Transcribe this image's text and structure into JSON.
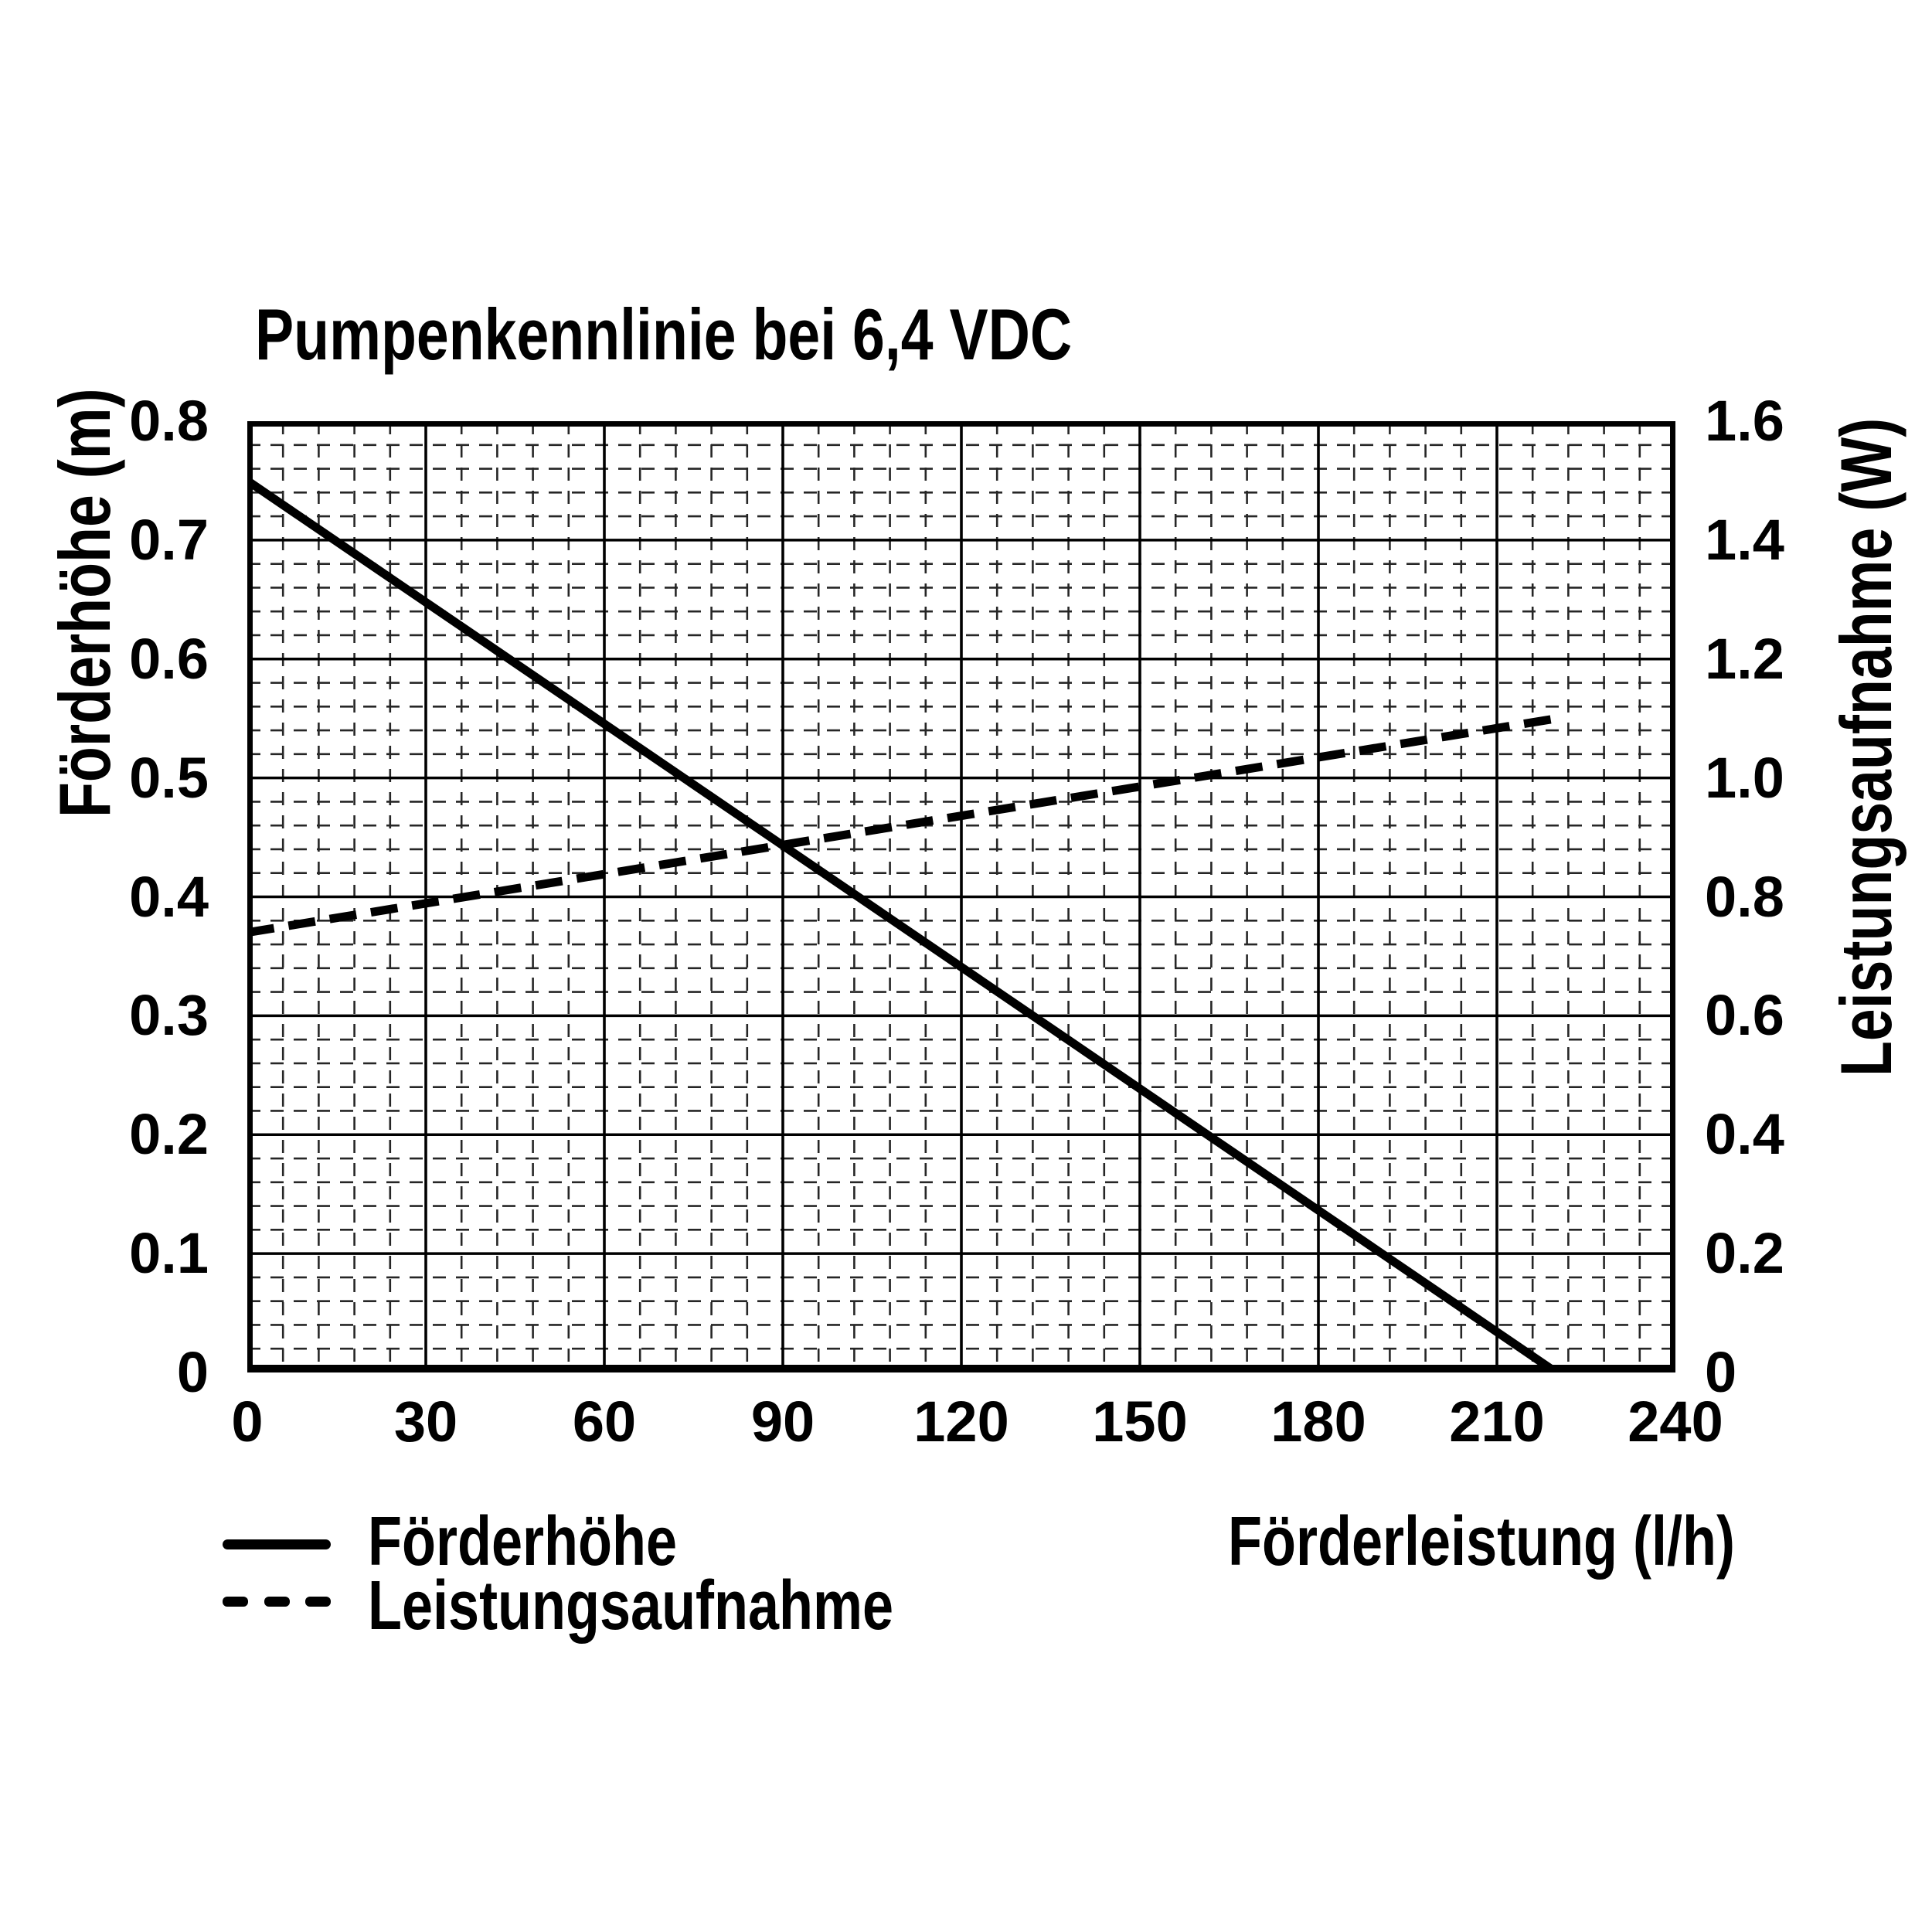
{
  "chart": {
    "title": "Pumpenkennlinie bei 6,4 VDC",
    "x_axis_title": "Förderleistung (l/h)",
    "left_axis_title": "Förderhöhe (m)",
    "right_axis_title": "Leistungsaufnahme (W)",
    "legend": {
      "solid_label": "Förderhöhe",
      "dashed_label": "Leistungsaufnahme"
    }
  },
  "chart_data": {
    "type": "line",
    "title": "Pumpenkennlinie bei 6,4 VDC",
    "x_axis": {
      "label": "Förderleistung (l/h)",
      "min": 0,
      "max": 240,
      "major_step": 30,
      "minor_step": 6,
      "tick_labels": [
        "0",
        "30",
        "60",
        "90",
        "120",
        "150",
        "180",
        "210",
        "240"
      ]
    },
    "y_axis_left": {
      "label": "Förderhöhe (m)",
      "min": 0,
      "max": 0.8,
      "major_step": 0.1,
      "minor_step": 0.02,
      "tick_labels": [
        "0",
        "0.1",
        "0.2",
        "0.3",
        "0.4",
        "0.5",
        "0.6",
        "0.7",
        "0.8"
      ]
    },
    "y_axis_right": {
      "label": "Leistungsaufnahme (W)",
      "min": 0,
      "max": 1.6,
      "major_step": 0.2,
      "minor_step": 0.04,
      "tick_labels": [
        "0",
        "0.2",
        "0.4",
        "0.6",
        "0.8",
        "1.0",
        "1.2",
        "1.4",
        "1.6"
      ]
    },
    "grid": {
      "major_solid": true,
      "minor_dashed": true
    },
    "series": [
      {
        "name": "Förderhöhe",
        "axis": "left",
        "unit": "m",
        "line_style": "solid",
        "points": [
          [
            0,
            0.75
          ],
          [
            220,
            0
          ]
        ]
      },
      {
        "name": "Leistungsaufnahme",
        "axis": "right",
        "unit": "W",
        "line_style": "dashed",
        "points": [
          [
            0,
            0.74
          ],
          [
            220,
            1.1
          ]
        ]
      }
    ],
    "legend_position": "bottom-left",
    "colors": {
      "line": "#000000",
      "grid_major": "#000000",
      "grid_minor": "#262626",
      "background": "#ffffff",
      "text": "#000000"
    }
  }
}
